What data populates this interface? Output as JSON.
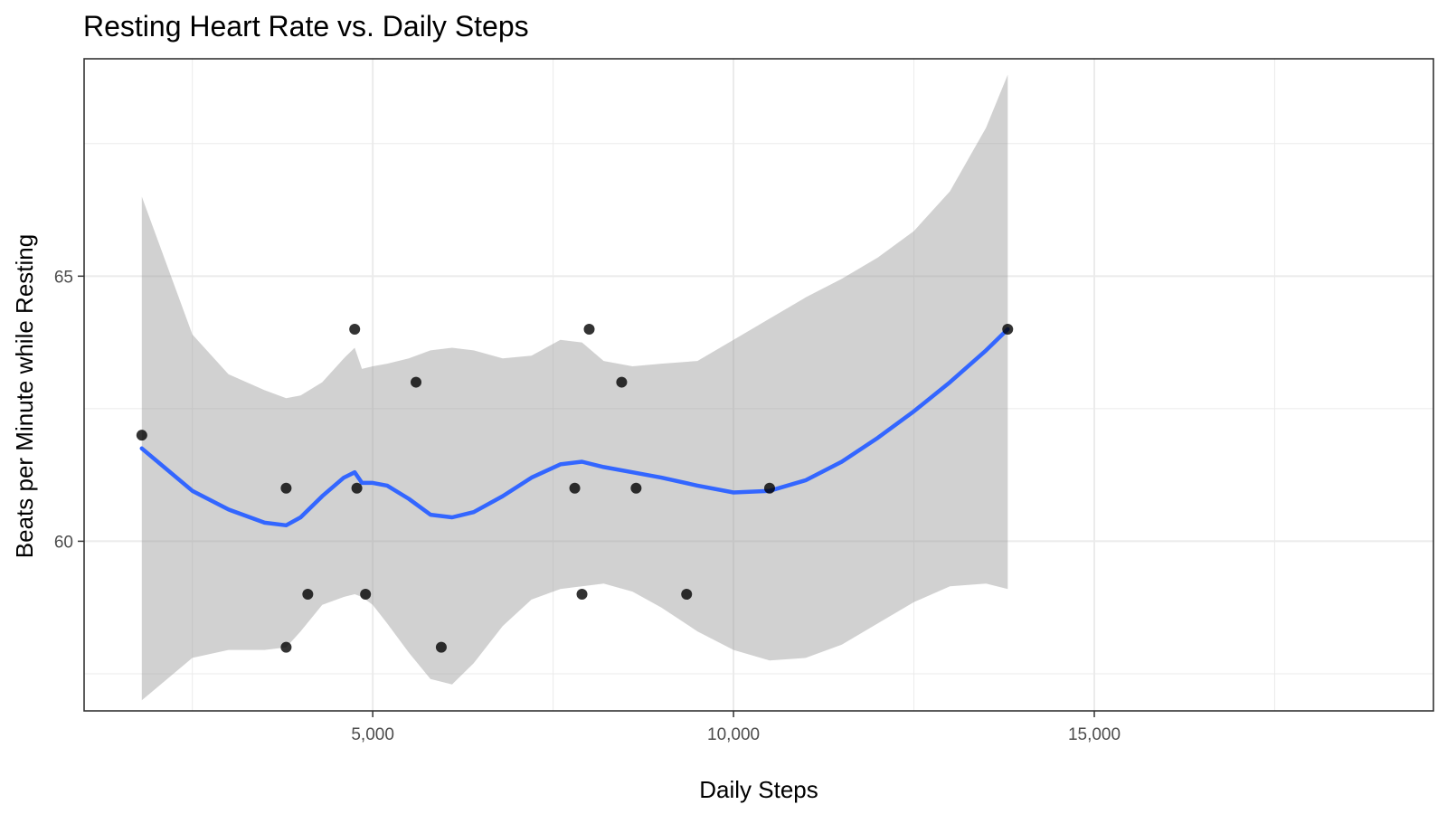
{
  "chart_data": {
    "type": "scatter",
    "title": "Resting Heart Rate vs. Daily Steps",
    "xlabel": "Daily Steps",
    "ylabel": "Beats per Minute while Resting",
    "xlim": [
      1000,
      19700
    ],
    "ylim": [
      56.8,
      69.1
    ],
    "x_major_ticks": [
      5000,
      10000,
      15000
    ],
    "x_tick_labels": [
      "5,000",
      "10,000",
      "15,000"
    ],
    "x_minor_ticks": [
      2500,
      7500,
      12500,
      17500
    ],
    "y_major_ticks": [
      60,
      65
    ],
    "y_tick_labels": [
      "60",
      "65"
    ],
    "y_minor_ticks": [
      57.5,
      62.5,
      67.5
    ],
    "grid": true,
    "legend": "none",
    "colors": {
      "points": "#000000",
      "smooth_line": "#3366ff",
      "confidence_band": "#999999",
      "grid": "#ebebeb",
      "panel_border": "#333333"
    },
    "series": [
      {
        "type": "scatter",
        "x": [
          1800,
          3800,
          3800,
          4100,
          4750,
          4780,
          4900,
          5600,
          5950,
          7800,
          7900,
          8000,
          8450,
          8650,
          9350,
          10500,
          13800
        ],
        "y": [
          62,
          61,
          58,
          59,
          64,
          61,
          59,
          63,
          58,
          61,
          59,
          64,
          63,
          61,
          59,
          61,
          64
        ]
      },
      {
        "type": "line",
        "x": [
          1800,
          2500,
          3000,
          3500,
          3800,
          4000,
          4300,
          4600,
          4750,
          4850,
          5000,
          5200,
          5500,
          5800,
          6100,
          6400,
          6800,
          7200,
          7600,
          7900,
          8200,
          8600,
          9000,
          9500,
          10000,
          10500,
          11000,
          11500,
          12000,
          12500,
          13000,
          13500,
          13800
        ],
        "y": [
          61.75,
          60.95,
          60.6,
          60.35,
          60.3,
          60.45,
          60.85,
          61.2,
          61.3,
          61.1,
          61.1,
          61.05,
          60.8,
          60.5,
          60.45,
          60.55,
          60.85,
          61.2,
          61.45,
          61.5,
          61.4,
          61.3,
          61.2,
          61.05,
          60.92,
          60.95,
          61.15,
          61.5,
          61.95,
          62.45,
          63.0,
          63.6,
          64.0
        ],
        "ci_lower": [
          57.0,
          57.8,
          57.95,
          57.95,
          58.0,
          58.3,
          58.8,
          58.95,
          59.0,
          58.95,
          58.8,
          58.45,
          57.9,
          57.4,
          57.3,
          57.7,
          58.4,
          58.9,
          59.1,
          59.15,
          59.2,
          59.05,
          58.75,
          58.3,
          57.95,
          57.75,
          57.8,
          58.05,
          58.45,
          58.85,
          59.15,
          59.2,
          59.1
        ],
        "ci_upper": [
          66.5,
          63.9,
          63.15,
          62.85,
          62.7,
          62.75,
          63.0,
          63.45,
          63.65,
          63.25,
          63.3,
          63.35,
          63.45,
          63.6,
          63.65,
          63.6,
          63.45,
          63.5,
          63.8,
          63.75,
          63.4,
          63.3,
          63.35,
          63.4,
          63.8,
          64.2,
          64.6,
          64.95,
          65.35,
          65.85,
          66.6,
          67.8,
          68.8
        ]
      }
    ]
  }
}
